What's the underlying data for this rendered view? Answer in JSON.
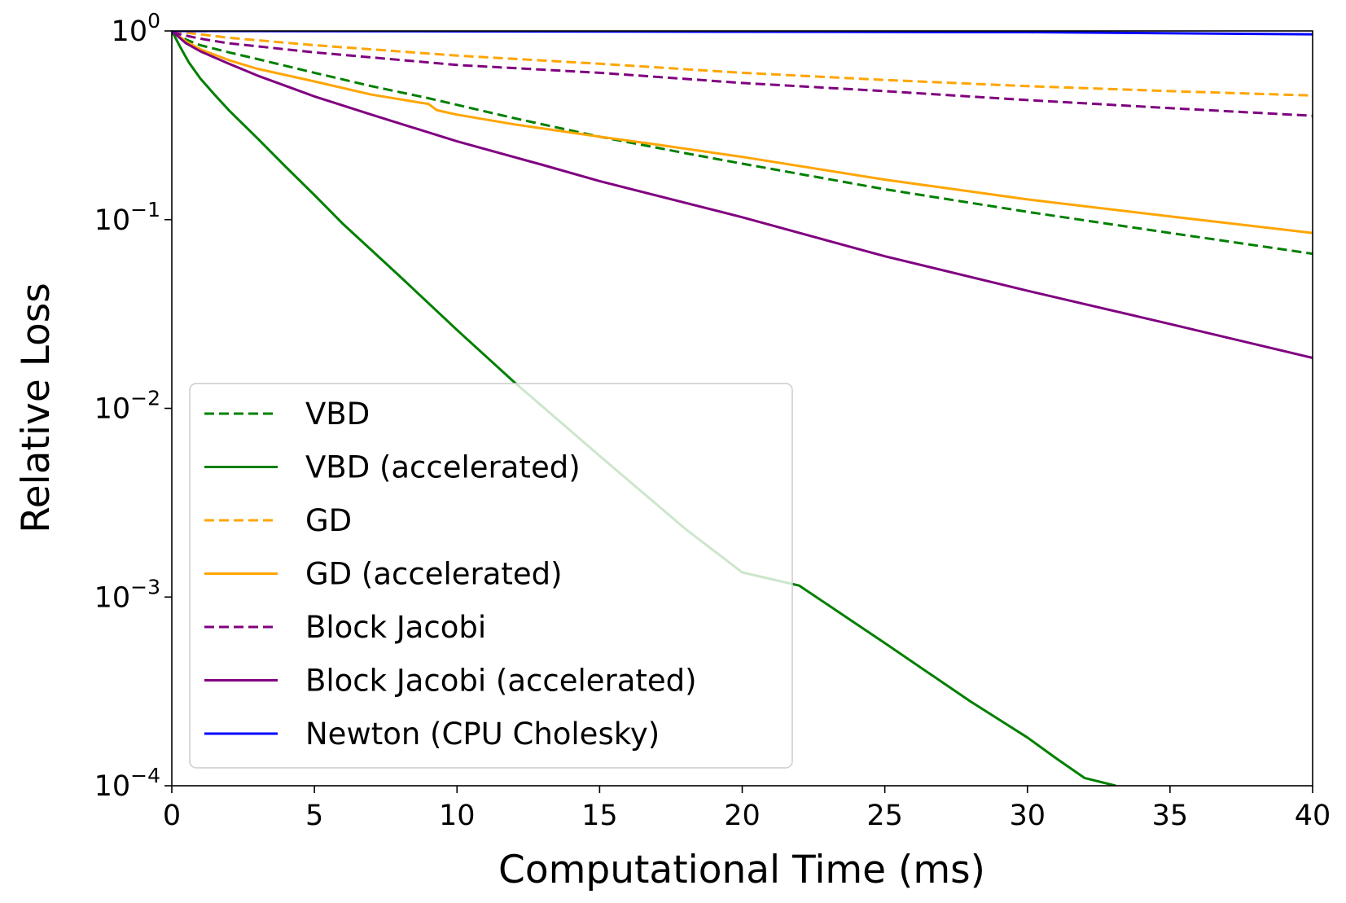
{
  "chart_data": {
    "type": "line",
    "title": "",
    "xlabel": "Computational Time (ms)",
    "ylabel": "Relative Loss",
    "xlim": [
      0,
      40
    ],
    "ylim": [
      0.0001,
      1
    ],
    "yscale": "log",
    "grid": false,
    "legend_position": "lower-left",
    "x_ticks": [
      {
        "value": 0,
        "label": "0"
      },
      {
        "value": 5,
        "label": "5"
      },
      {
        "value": 10,
        "label": "10"
      },
      {
        "value": 15,
        "label": "15"
      },
      {
        "value": 20,
        "label": "20"
      },
      {
        "value": 25,
        "label": "25"
      },
      {
        "value": 30,
        "label": "30"
      },
      {
        "value": 35,
        "label": "35"
      },
      {
        "value": 40,
        "label": "40"
      }
    ],
    "y_ticks": [
      {
        "value": 1,
        "base": "10",
        "exp": "0"
      },
      {
        "value": 0.1,
        "base": "10",
        "exp": "−1"
      },
      {
        "value": 0.01,
        "base": "10",
        "exp": "−2"
      },
      {
        "value": 0.001,
        "base": "10",
        "exp": "−3"
      },
      {
        "value": 0.0001,
        "base": "10",
        "exp": "−4"
      }
    ],
    "series": [
      {
        "name": "VBD",
        "color": "#008000",
        "dash": true,
        "x": [
          0,
          0.5,
          1,
          2,
          3,
          5,
          7,
          9,
          12,
          15,
          18,
          20,
          25,
          30,
          35,
          40
        ],
        "y": [
          1.0,
          0.9,
          0.84,
          0.77,
          0.71,
          0.6,
          0.51,
          0.44,
          0.345,
          0.275,
          0.225,
          0.198,
          0.145,
          0.11,
          0.085,
          0.066
        ]
      },
      {
        "name": "VBD (accelerated)",
        "color": "#008000",
        "dash": false,
        "x": [
          0,
          0.3,
          0.6,
          1,
          1.5,
          2,
          3,
          4,
          5,
          6,
          8,
          10,
          12,
          15,
          18,
          20,
          22,
          25,
          28,
          30,
          31,
          32,
          33.1
        ],
        "y": [
          1.0,
          0.82,
          0.68,
          0.56,
          0.46,
          0.38,
          0.27,
          0.19,
          0.135,
          0.095,
          0.05,
          0.026,
          0.0138,
          0.0056,
          0.0023,
          0.00135,
          0.00115,
          0.00057,
          0.00028,
          0.00018,
          0.00014,
          0.00011,
          0.0001
        ]
      },
      {
        "name": "GD",
        "color": "#FFA500",
        "dash": true,
        "x": [
          0,
          2,
          5,
          10,
          15,
          20,
          25,
          30,
          35,
          40
        ],
        "y": [
          1.0,
          0.92,
          0.84,
          0.74,
          0.67,
          0.6,
          0.55,
          0.51,
          0.48,
          0.455
        ]
      },
      {
        "name": "GD (accelerated)",
        "color": "#FFA500",
        "dash": false,
        "x": [
          0,
          0.5,
          1,
          2,
          3,
          5,
          7,
          9,
          9.3,
          10,
          12,
          15,
          17,
          20,
          25,
          30,
          35,
          40
        ],
        "y": [
          1.0,
          0.88,
          0.8,
          0.7,
          0.63,
          0.54,
          0.46,
          0.41,
          0.38,
          0.36,
          0.32,
          0.275,
          0.25,
          0.215,
          0.163,
          0.128,
          0.104,
          0.085
        ]
      },
      {
        "name": "Block Jacobi",
        "color": "#800080",
        "dash": true,
        "x": [
          0,
          1,
          2,
          5,
          10,
          15,
          20,
          25,
          30,
          35,
          40
        ],
        "y": [
          0.98,
          0.91,
          0.86,
          0.77,
          0.66,
          0.6,
          0.53,
          0.48,
          0.43,
          0.39,
          0.355
        ]
      },
      {
        "name": "Block Jacobi (accelerated)",
        "color": "#800080",
        "dash": false,
        "x": [
          0,
          0.5,
          1,
          2,
          3,
          5,
          7,
          10,
          13,
          15,
          20,
          25,
          30,
          35,
          40
        ],
        "y": [
          1.0,
          0.86,
          0.78,
          0.67,
          0.58,
          0.45,
          0.36,
          0.26,
          0.195,
          0.16,
          0.103,
          0.064,
          0.042,
          0.028,
          0.0185
        ]
      },
      {
        "name": "Newton (CPU Cholesky)",
        "color": "#0000FF",
        "dash": false,
        "x": [
          0,
          10,
          20,
          30,
          40
        ],
        "y": [
          1.0,
          0.995,
          0.99,
          0.985,
          0.96
        ]
      }
    ]
  }
}
